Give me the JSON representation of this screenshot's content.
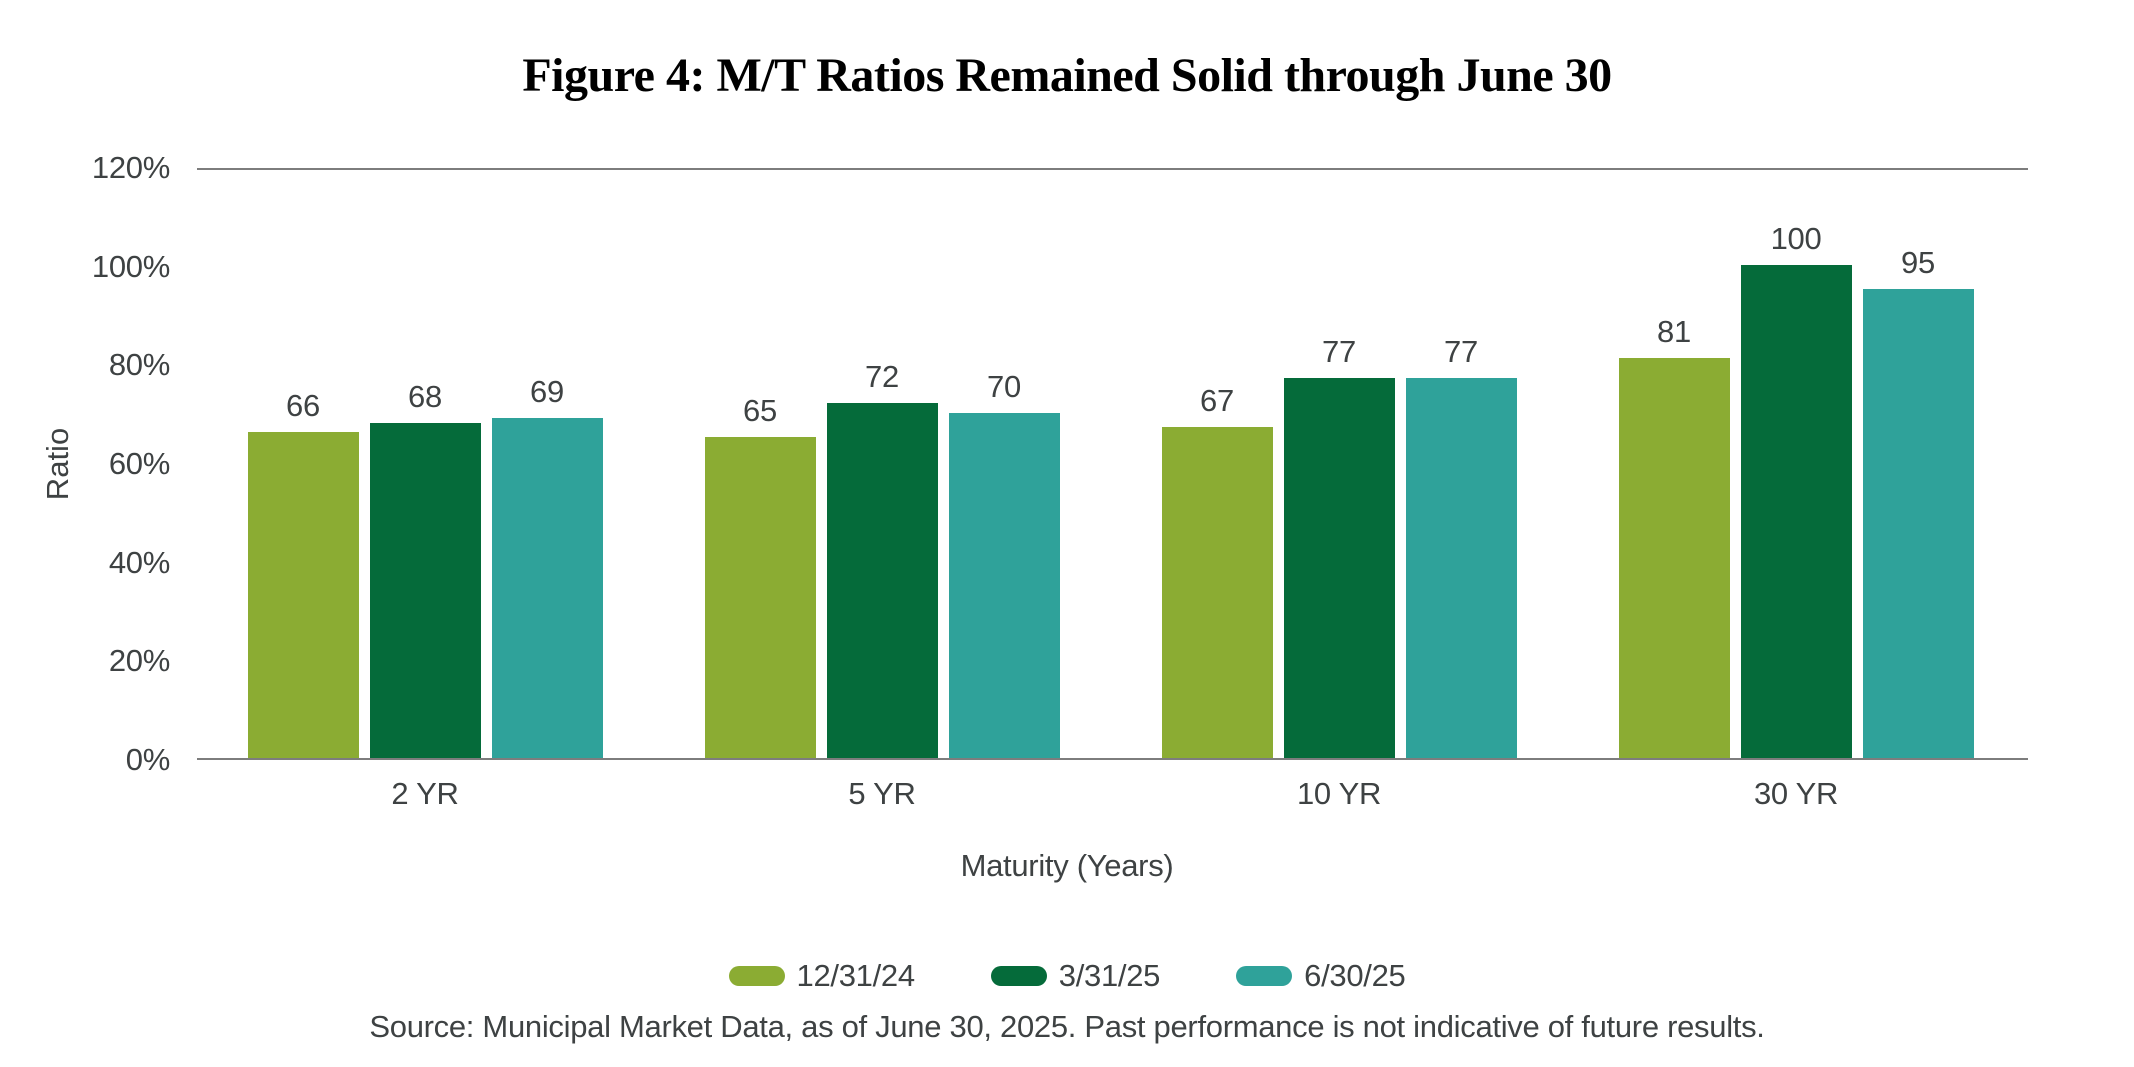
{
  "chart_data": {
    "type": "bar",
    "title": "Figure 4: M/T Ratios Remained Solid through June 30",
    "categories": [
      "2 YR",
      "5 YR",
      "10 YR",
      "30 YR"
    ],
    "series": [
      {
        "name": "12/31/24",
        "color": "#8BAC33",
        "values": [
          66,
          65,
          67,
          81
        ]
      },
      {
        "name": "3/31/25",
        "color": "#056B3A",
        "values": [
          68,
          72,
          77,
          100
        ]
      },
      {
        "name": "6/30/25",
        "color": "#2FA29A",
        "values": [
          69,
          70,
          77,
          95
        ]
      }
    ],
    "xlabel": "Maturity (Years)",
    "ylabel": "Ratio",
    "ylim": [
      0,
      120
    ],
    "ytick_step": 20,
    "ytick_suffix": "%",
    "grid": false,
    "legend_position": "bottom",
    "value_labels": true
  },
  "source_note": "Source: Municipal Market Data, as of June 30, 2025. Past performance is not indicative of future results.",
  "colors": {
    "title_text": "#000000",
    "body_text": "#3E4243",
    "axis_line": "#7D7D7D",
    "background": "#FFFFFF"
  }
}
